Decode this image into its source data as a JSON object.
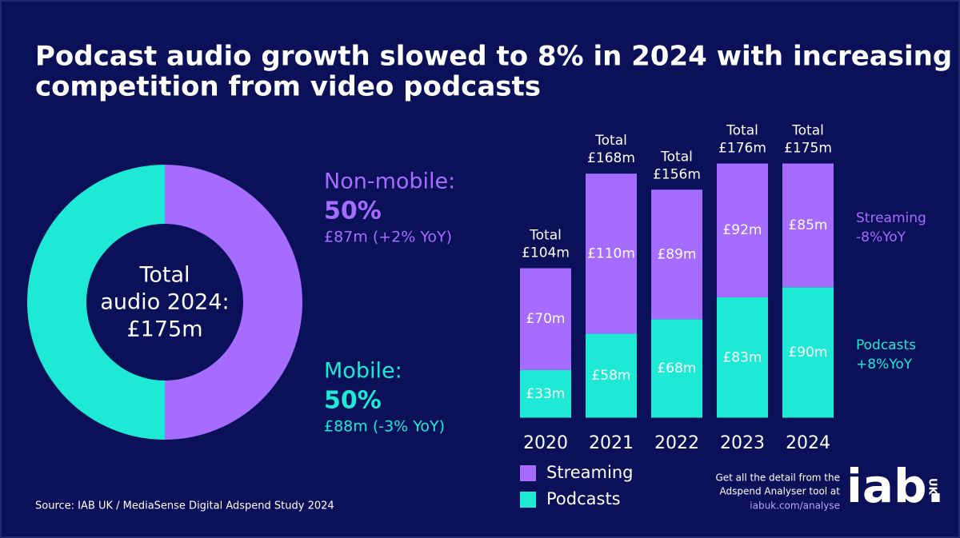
{
  "title": [
    "Podcast audio growth slowed to 8% in 2024 with increasing",
    "competition from video podcasts"
  ],
  "source": "Source: IAB UK / MediaSense Digital Adspend Study 2024",
  "cta": [
    "Get all the detail from the",
    "Adspend Analyser tool at",
    "iabuk.com/analyse"
  ],
  "logo": {
    "main": "iab.",
    "sub": "UK"
  },
  "chart_data": [
    {
      "type": "pie",
      "donut": true,
      "center_label": [
        "Total",
        "audio 2024:",
        "£175m"
      ],
      "categories": [
        "Non-mobile:",
        "Mobile:"
      ],
      "values": [
        50,
        50
      ],
      "value_labels": [
        "50%",
        "50%"
      ],
      "details": [
        "£87m (+2% YoY)",
        "£88m (-3% YoY)"
      ],
      "colors": [
        "#a66cff",
        "#1de9d5"
      ]
    },
    {
      "type": "bar",
      "stacked": true,
      "categories": [
        "2020",
        "2021",
        "2022",
        "2023",
        "2024"
      ],
      "ylim": [
        0,
        200
      ],
      "series": [
        {
          "name": "Podcasts",
          "color": "#1de9d5",
          "values": [
            33,
            58,
            68,
            83,
            90
          ],
          "value_labels": [
            "£33m",
            "£58m",
            "£68m",
            "£83m",
            "£90m"
          ],
          "change": "+8%YoY"
        },
        {
          "name": "Streaming",
          "color": "#a66cff",
          "values": [
            70,
            110,
            89,
            92,
            85
          ],
          "value_labels": [
            "£70m",
            "£110m",
            "£89m",
            "£92m",
            "£85m"
          ],
          "change": "-8%YoY"
        }
      ],
      "total_labels": [
        [
          "Total",
          "£104m"
        ],
        [
          "Total",
          "£168m"
        ],
        [
          "Total",
          "£156m"
        ],
        [
          "Total",
          "£176m"
        ],
        [
          "Total",
          "£175m"
        ]
      ]
    }
  ]
}
